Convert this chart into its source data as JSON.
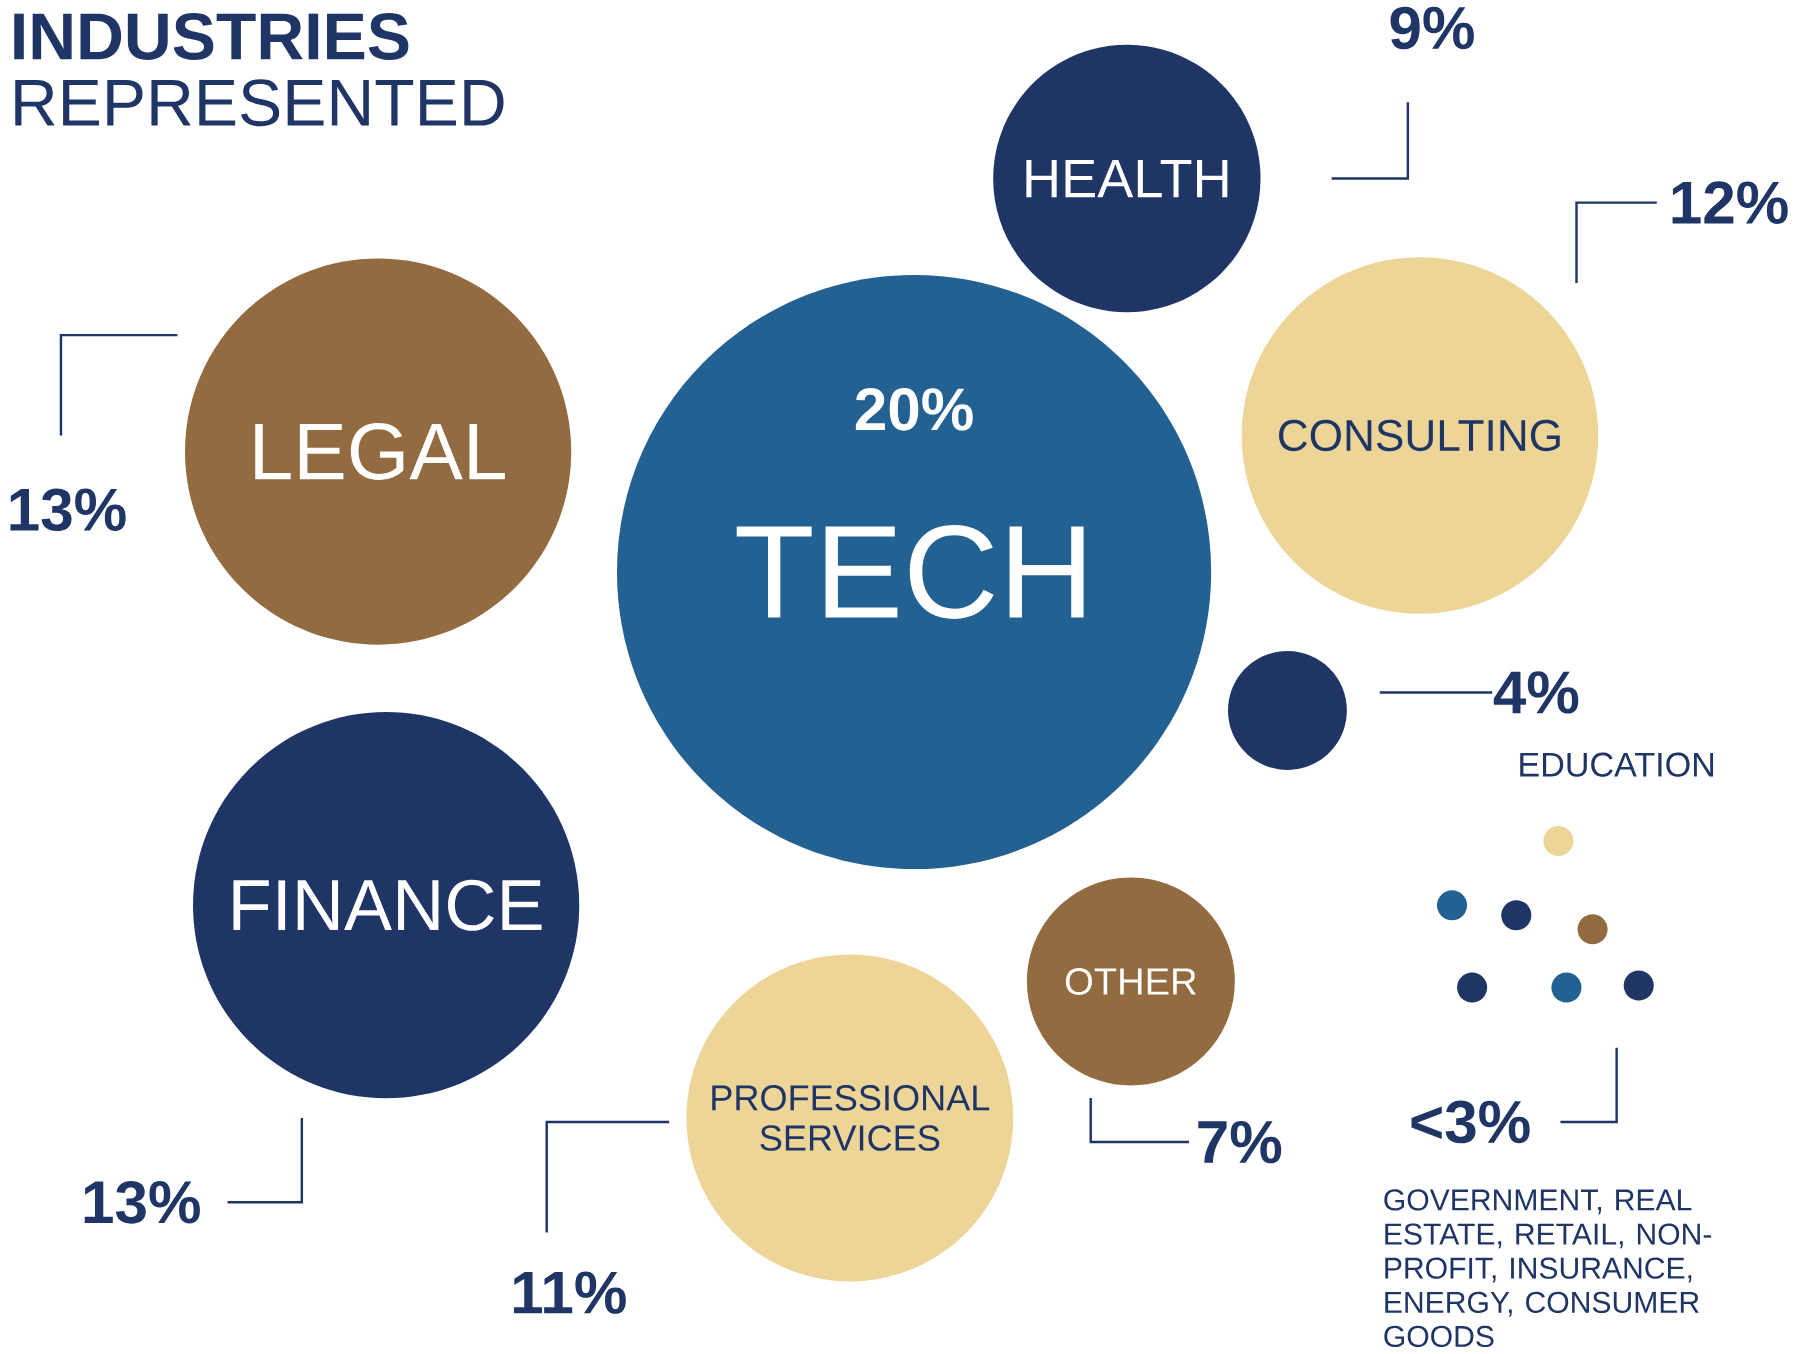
{
  "chart_data": {
    "type": "other",
    "title": "**INDUSTRIES** REPRESENTED",
    "categories": [
      "TECH",
      "LEGAL",
      "FINANCE",
      "HEALTH",
      "CONSULTING",
      "EDUCATION",
      "OTHER",
      "PROFESSIONAL SERVICES",
      "GOVERNMENT, REAL ESTATE, RETAIL, NON-PROFIT, INSURANCE, ENERGY, CONSUMER GOODS"
    ],
    "values": [
      20,
      13,
      13,
      9,
      12,
      4,
      7,
      11,
      null
    ],
    "value_labels": [
      "20%",
      "13%",
      "13%",
      "9%",
      "12%",
      "4%",
      "7%",
      "11%",
      "<3%"
    ],
    "colors": [
      "#236192",
      "#936b40",
      "#1f3566",
      "#1f3566",
      "#ecd597",
      "#1f3566",
      "#936b40",
      "#ecd597",
      null
    ]
  }
}
